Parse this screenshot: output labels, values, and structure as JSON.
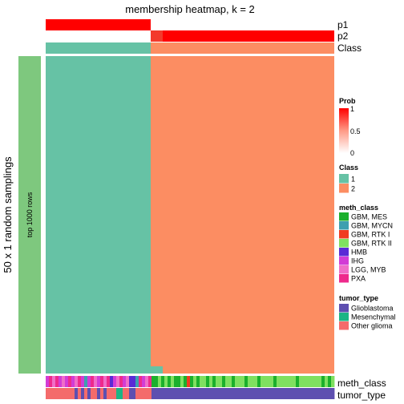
{
  "chart_data": {
    "type": "heatmap",
    "title": "membership heatmap, k = 2",
    "ylabel": "50 x 1 random samplings",
    "row_slice_label": "top 1000 rows",
    "top_annotations": [
      "p1",
      "p2",
      "Class"
    ],
    "bottom_annotations": [
      "meth_class",
      "tumor_type"
    ],
    "class_split": {
      "class_1_fraction": 0.37,
      "class_2_fraction": 0.63
    },
    "heatmap_colors": {
      "class_1": "#66C2A5",
      "class_2": "#FC8D62"
    },
    "legends": {
      "prob": {
        "title": "Prob",
        "ticks": [
          "1",
          "0.5",
          "0"
        ],
        "colors": {
          "high": "#FF0000",
          "low": "#FFFFFF"
        }
      },
      "class": {
        "title": "Class",
        "items": [
          {
            "label": "1",
            "color": "#66C2A5"
          },
          {
            "label": "2",
            "color": "#FC8D62"
          }
        ]
      },
      "meth_class": {
        "title": "meth_class",
        "items": [
          {
            "label": "GBM, MES",
            "color": "#1BB02C"
          },
          {
            "label": "GBM, MYCN",
            "color": "#3E9FB0"
          },
          {
            "label": "GBM, RTK I",
            "color": "#F03B20"
          },
          {
            "label": "GBM, RTK II",
            "color": "#7FE060"
          },
          {
            "label": "HMB",
            "color": "#5A2AD6"
          },
          {
            "label": "IHG",
            "color": "#D23CD6"
          },
          {
            "label": "LGG, MYB",
            "color": "#F06EC8"
          },
          {
            "label": "PXA",
            "color": "#EE2A8C"
          }
        ]
      },
      "tumor_type": {
        "title": "tumor_type",
        "items": [
          {
            "label": "Glioblastoma",
            "color": "#5E4FB0"
          },
          {
            "label": "Mesenchymal",
            "color": "#1BB585"
          },
          {
            "label": "Other glioma",
            "color": "#F46B6B"
          }
        ]
      }
    },
    "meth_class_strip": [
      "IHG",
      "PXA",
      "LGG, MYB",
      "PXA",
      "IHG",
      "LGG, MYB",
      "IHG",
      "PXA",
      "IHG",
      "LGG, MYB",
      "PXA",
      "IHG",
      "GBM, MYCN",
      "IHG",
      "PXA",
      "LGG, MYB",
      "IHG",
      "PXA",
      "LGG, MYB",
      "PXA",
      "HMB",
      "IHG",
      "LGG, MYB",
      "PXA",
      "IHG",
      "LGG, MYB",
      "HMB",
      "HMB",
      "GBM, MYCN",
      "PXA",
      "IHG",
      "LGG, MYB",
      "PXA",
      "GBM, MES",
      "GBM, MES",
      "GBM, RTK II",
      "GBM, MES",
      "GBM, RTK II",
      "GBM, MES",
      "GBM, RTK II",
      "GBM, MES",
      "GBM, MES",
      "GBM, RTK II",
      "GBM, MES",
      "GBM, RTK I",
      "GBM, MES",
      "GBM, RTK II",
      "GBM, MES",
      "GBM, RTK II",
      "GBM, RTK II",
      "GBM, MES",
      "GBM, RTK II",
      "GBM, MES",
      "GBM, RTK II",
      "GBM, RTK II",
      "GBM, MES",
      "GBM, RTK II",
      "GBM, RTK II",
      "GBM, MES",
      "GBM, RTK II",
      "GBM, RTK II",
      "GBM, RTK II",
      "GBM, MES",
      "GBM, RTK II",
      "GBM, RTK II",
      "GBM, RTK II",
      "GBM, MES",
      "GBM, RTK II",
      "GBM, RTK II",
      "GBM, RTK II",
      "GBM, RTK II",
      "GBM, MES",
      "GBM, RTK II",
      "GBM, RTK II",
      "GBM, RTK II",
      "GBM, RTK II",
      "GBM, RTK II",
      "GBM, RTK II",
      "GBM, MES",
      "GBM, RTK II",
      "GBM, RTK II",
      "GBM, RTK II",
      "GBM, RTK II",
      "GBM, RTK II",
      "GBM, RTK II",
      "GBM, RTK II",
      "GBM, MES",
      "GBM, RTK II",
      "GBM, MES",
      "GBM, RTK II"
    ],
    "tumor_type_strip": [
      "Other glioma",
      "Other glioma",
      "Other glioma",
      "Other glioma",
      "Other glioma",
      "Other glioma",
      "Other glioma",
      "Other glioma",
      "Other glioma",
      "Glioblastoma",
      "Other glioma",
      "Glioblastoma",
      "Other glioma",
      "Glioblastoma",
      "Other glioma",
      "Other glioma",
      "Glioblastoma",
      "Other glioma",
      "Glioblastoma",
      "Other glioma",
      "Other glioma",
      "Other glioma",
      "Mesenchymal",
      "Mesenchymal",
      "Other glioma",
      "Other glioma",
      "Glioblastoma",
      "Glioblastoma",
      "Other glioma",
      "Other glioma",
      "Other glioma",
      "Other glioma",
      "Other glioma",
      "Glioblastoma",
      "Glioblastoma",
      "Glioblastoma",
      "Glioblastoma",
      "Glioblastoma",
      "Glioblastoma",
      "Glioblastoma",
      "Glioblastoma",
      "Glioblastoma",
      "Glioblastoma",
      "Glioblastoma",
      "Glioblastoma",
      "Glioblastoma",
      "Glioblastoma",
      "Glioblastoma",
      "Glioblastoma",
      "Glioblastoma",
      "Glioblastoma",
      "Glioblastoma",
      "Glioblastoma",
      "Glioblastoma",
      "Glioblastoma",
      "Glioblastoma",
      "Glioblastoma",
      "Glioblastoma",
      "Glioblastoma",
      "Glioblastoma",
      "Glioblastoma",
      "Glioblastoma",
      "Glioblastoma",
      "Glioblastoma",
      "Glioblastoma",
      "Glioblastoma",
      "Glioblastoma",
      "Glioblastoma",
      "Glioblastoma",
      "Glioblastoma",
      "Glioblastoma",
      "Glioblastoma",
      "Glioblastoma",
      "Glioblastoma",
      "Glioblastoma",
      "Glioblastoma",
      "Glioblastoma",
      "Glioblastoma",
      "Glioblastoma",
      "Glioblastoma",
      "Glioblastoma",
      "Glioblastoma",
      "Glioblastoma",
      "Glioblastoma",
      "Glioblastoma",
      "Glioblastoma",
      "Glioblastoma",
      "Glioblastoma",
      "Glioblastoma",
      "Glioblastoma"
    ]
  }
}
